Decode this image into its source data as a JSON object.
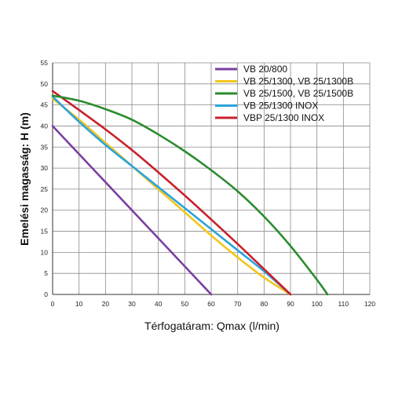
{
  "chart_data": {
    "type": "line",
    "xlabel": "Térfogatáram: Qmax (l/min)",
    "ylabel": "Emelési magasság: H (m)",
    "xlim": [
      0,
      120
    ],
    "ylim": [
      0,
      55
    ],
    "xticks": [
      0,
      10,
      20,
      30,
      40,
      50,
      60,
      70,
      80,
      90,
      100,
      110,
      120
    ],
    "yticks": [
      0,
      5,
      10,
      15,
      20,
      25,
      30,
      35,
      40,
      45,
      50,
      55
    ],
    "grid": true,
    "legend_position": "top-right",
    "series": [
      {
        "name": "VB 20/800",
        "color": "#7b3fa0",
        "points": [
          [
            0,
            40
          ],
          [
            60,
            0
          ]
        ]
      },
      {
        "name": "VB 25/1300, VB 25/1300B",
        "color": "#f2c51b",
        "points": [
          [
            0,
            46.5
          ],
          [
            10,
            41.5
          ],
          [
            20,
            36
          ],
          [
            30,
            30.5
          ],
          [
            40,
            25
          ],
          [
            50,
            19.5
          ],
          [
            60,
            14
          ],
          [
            70,
            8.8
          ],
          [
            80,
            4
          ],
          [
            90,
            0
          ]
        ]
      },
      {
        "name": "VB 25/1500, VB 25/1500B",
        "color": "#2a8c2e",
        "points": [
          [
            0,
            47.2
          ],
          [
            10,
            46
          ],
          [
            20,
            44
          ],
          [
            30,
            41.5
          ],
          [
            40,
            38
          ],
          [
            50,
            34
          ],
          [
            60,
            29.5
          ],
          [
            70,
            24.5
          ],
          [
            80,
            18.5
          ],
          [
            90,
            11.5
          ],
          [
            100,
            3.5
          ],
          [
            104,
            0
          ]
        ]
      },
      {
        "name": "VB 25/1300 INOX",
        "color": "#2ba3dd",
        "points": [
          [
            0,
            47
          ],
          [
            10,
            41
          ],
          [
            20,
            35.5
          ],
          [
            30,
            30.5
          ],
          [
            40,
            25.5
          ],
          [
            50,
            20.5
          ],
          [
            60,
            15.5
          ],
          [
            70,
            10.5
          ],
          [
            80,
            5.5
          ],
          [
            90,
            0
          ]
        ]
      },
      {
        "name": "VBP 25/1300 INOX",
        "color": "#c8202a",
        "points": [
          [
            0,
            48.3
          ],
          [
            10,
            43.8
          ],
          [
            20,
            39.2
          ],
          [
            30,
            34.3
          ],
          [
            40,
            29
          ],
          [
            50,
            23.5
          ],
          [
            60,
            17.8
          ],
          [
            70,
            12
          ],
          [
            80,
            6
          ],
          [
            90,
            0
          ]
        ]
      }
    ]
  }
}
